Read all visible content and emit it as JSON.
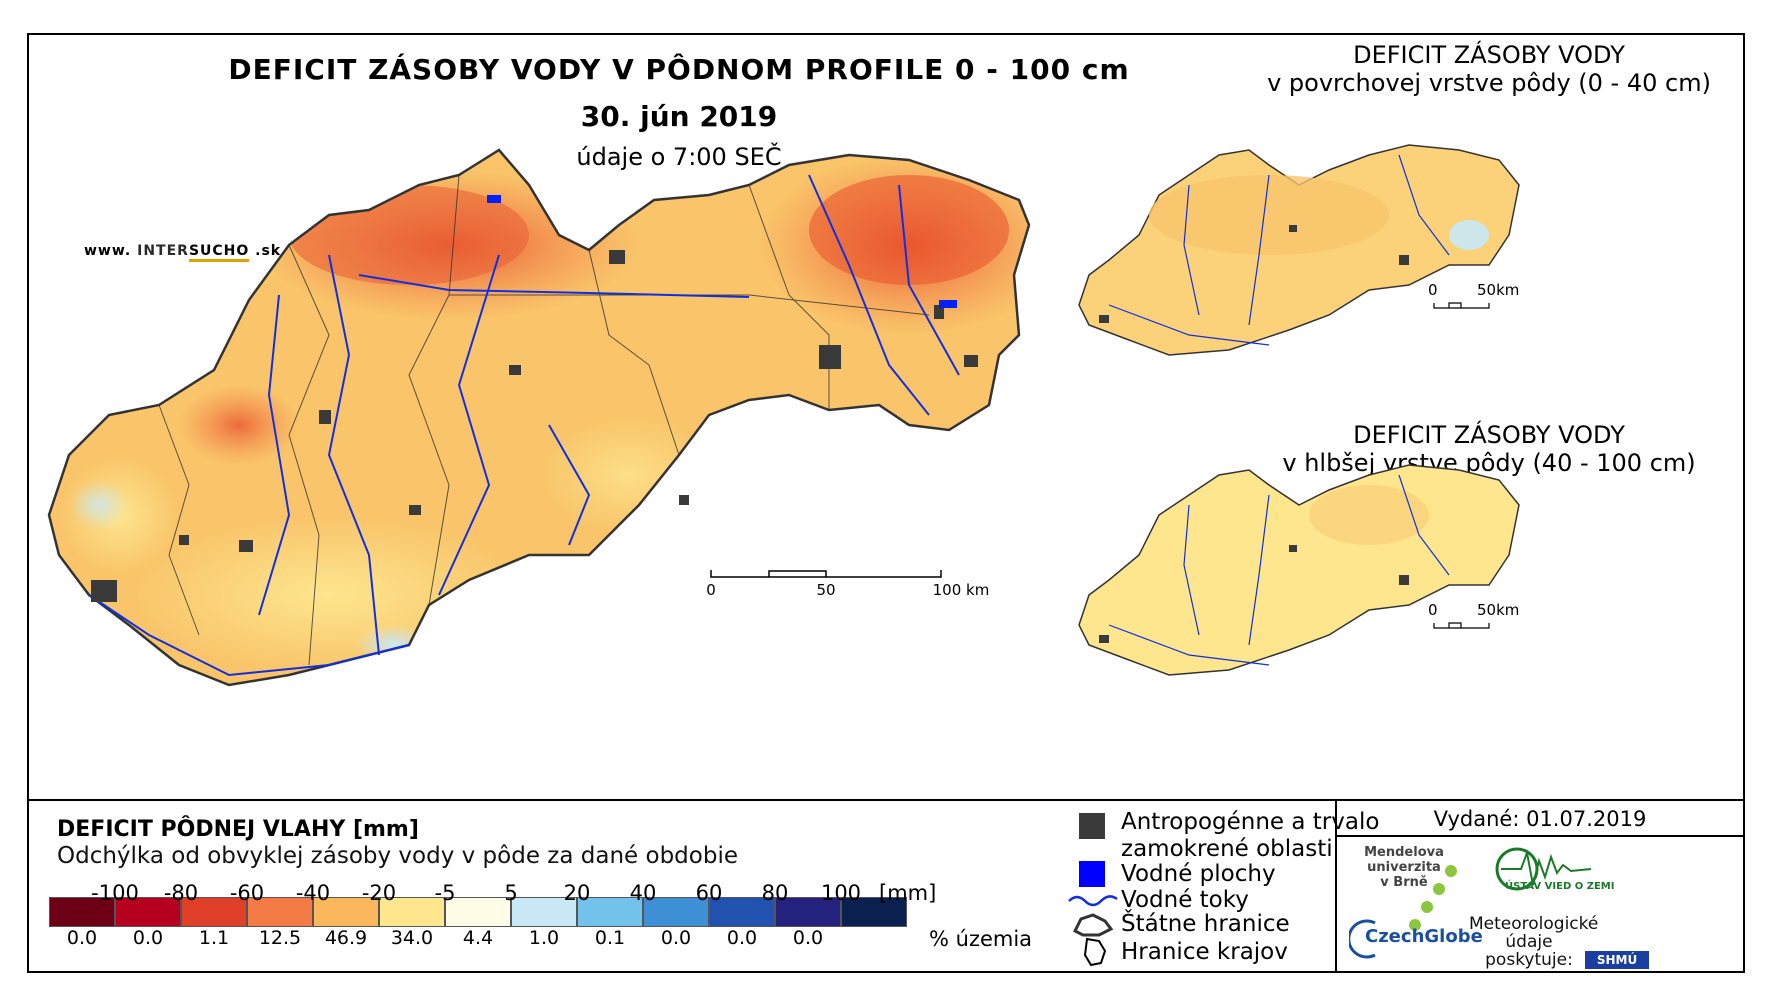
{
  "header": {
    "title": "DEFICIT ZÁSOBY VODY V PÔDNOM PROFILE 0 - 100 cm",
    "date": "30. jún 2019",
    "time": "údaje o 7:00 SEČ",
    "site_prefix": "www.",
    "site_brand_a": "INTER",
    "site_brand_b": "SUCHO",
    "site_suffix": ".sk"
  },
  "insets": [
    {
      "title": "DEFICIT ZÁSOBY VODY",
      "subtitle": "v povrchovej vrstve pôdy (0 - 40 cm)",
      "scale_0": "0",
      "scale_50": "50km"
    },
    {
      "title": "DEFICIT ZÁSOBY VODY",
      "subtitle": "v hlbšej vrstve pôdy (40 - 100 cm)",
      "scale_0": "0",
      "scale_50": "50km"
    }
  ],
  "scalebar": {
    "labels": [
      "0",
      "50",
      "100 km"
    ]
  },
  "legend": {
    "title": "DEFICIT PÔDNEJ VLAHY [mm]",
    "subtitle": "Odchýlka od obvyklej zásoby vody v pôde za dané obdobie",
    "ticks": [
      "-100",
      "-80",
      "-60",
      "-40",
      "-20",
      "-5",
      "5",
      "20",
      "40",
      "60",
      "80",
      "100"
    ],
    "unit": "[mm]",
    "pct_label": "% územia",
    "classes": [
      {
        "color": "#6e0016",
        "pct": "0.0"
      },
      {
        "color": "#b5001f",
        "pct": "0.0"
      },
      {
        "color": "#e0402a",
        "pct": "1.1"
      },
      {
        "color": "#f47a46",
        "pct": "12.5"
      },
      {
        "color": "#fbb75b",
        "pct": "46.9"
      },
      {
        "color": "#fde68e",
        "pct": "34.0"
      },
      {
        "color": "#fffde8",
        "pct": "4.4"
      },
      {
        "color": "#c8e8f6",
        "pct": "1.0"
      },
      {
        "color": "#72c3ec",
        "pct": "0.1"
      },
      {
        "color": "#3f8fd6",
        "pct": "0.0"
      },
      {
        "color": "#2152b0",
        "pct": "0.0"
      },
      {
        "color": "#25217e",
        "pct": "0.0"
      },
      {
        "color": "#0a2150",
        "pct": ""
      }
    ]
  },
  "symbols": {
    "urban": "Antropogénne a trvalo zamokrené oblasti",
    "water_bodies": "Vodné plochy",
    "rivers": "Vodné toky",
    "state_border": "Štátne hranice",
    "regions": "Hranice krajov"
  },
  "issued": {
    "label": "Vydané: 01.07.2019",
    "mendel": [
      "Mendelova",
      "univerzita",
      "v Brně"
    ],
    "czechglobe": "CzechGlobe",
    "ustav": "ÚSTAV VIED O ZEMI",
    "meteo": [
      "Meteorologické",
      "údaje",
      "poskytuje:"
    ],
    "shmu": "SHMÚ"
  },
  "colors": {
    "river": "#1030e0",
    "urban": "#3a3a3a",
    "border": "#333333"
  }
}
